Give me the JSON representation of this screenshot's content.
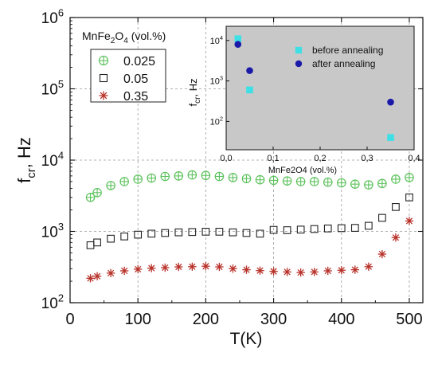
{
  "chart_data": [
    {
      "type": "scatter",
      "xlabel": "T(K)",
      "ylabel_base": "f",
      "ylabel_sub": "cr",
      "ylabel_rest": ", Hz",
      "xlim": [
        0,
        520
      ],
      "ylim_log": [
        2,
        6
      ],
      "x_ticks": [
        "0",
        "100",
        "200",
        "300",
        "400",
        "500"
      ],
      "x_tick_values": [
        0,
        100,
        200,
        300,
        400,
        500
      ],
      "y_tick_values": [
        2,
        3,
        4,
        5,
        6
      ],
      "y_tick_mantissa": "10",
      "y_tick_exponents": [
        "2",
        "3",
        "4",
        "5",
        "6"
      ],
      "grid": true,
      "legend_title_pre": "MnFe",
      "legend_title_sub1": "2",
      "legend_title_mid": "O",
      "legend_title_sub2": "4",
      "legend_title_post": " (vol.%)",
      "legend_position": "top-left",
      "series": [
        {
          "name": "0.025",
          "marker": "circle-plus",
          "color": "#5cc25c",
          "x": [
            30,
            40,
            60,
            80,
            100,
            120,
            140,
            160,
            180,
            200,
            220,
            240,
            260,
            280,
            300,
            320,
            340,
            360,
            380,
            400,
            420,
            440,
            460,
            480,
            500
          ],
          "y": [
            3000,
            3500,
            4400,
            5000,
            5400,
            5600,
            5900,
            6000,
            6200,
            6100,
            5900,
            5700,
            5500,
            5300,
            5200,
            5100,
            5000,
            5000,
            4900,
            4800,
            4600,
            4500,
            4700,
            5400,
            5700
          ]
        },
        {
          "name": "0.05",
          "marker": "square",
          "color": "#222222",
          "x": [
            30,
            40,
            60,
            80,
            100,
            120,
            140,
            160,
            180,
            200,
            220,
            240,
            260,
            280,
            300,
            320,
            340,
            360,
            380,
            400,
            420,
            440,
            460,
            480,
            500
          ],
          "y": [
            640,
            700,
            790,
            850,
            900,
            930,
            950,
            970,
            980,
            990,
            990,
            970,
            950,
            930,
            1050,
            1040,
            1060,
            1080,
            1100,
            1110,
            1120,
            1200,
            1550,
            2200,
            3000
          ]
        },
        {
          "name": "0.35",
          "marker": "asterisk",
          "color": "#b8322a",
          "x": [
            30,
            40,
            60,
            80,
            100,
            120,
            140,
            160,
            180,
            200,
            220,
            240,
            260,
            280,
            300,
            320,
            340,
            360,
            380,
            400,
            420,
            440,
            460,
            480,
            500
          ],
          "y": [
            220,
            235,
            260,
            280,
            295,
            305,
            310,
            318,
            320,
            325,
            318,
            300,
            290,
            282,
            275,
            270,
            265,
            270,
            280,
            285,
            290,
            320,
            480,
            820,
            1400
          ]
        }
      ]
    },
    {
      "type": "scatter",
      "xlabel": "MnFe2O4 (vol.%)",
      "ylabel_base": "f",
      "ylabel_sub": "cr",
      "ylabel_rest": ", Hz",
      "xlim": [
        0,
        0.4
      ],
      "ylim_log": [
        1.3,
        4.35
      ],
      "x_ticks": [
        "0,0",
        "0,1",
        "0,2",
        "0,3",
        "0,4"
      ],
      "x_tick_values": [
        0,
        0.1,
        0.2,
        0.3,
        0.4
      ],
      "y_tick_values": [
        2,
        3,
        4
      ],
      "y_tick_mantissa": "10",
      "y_tick_exponents": [
        "2",
        "3",
        "4"
      ],
      "background": "#c8c8c8",
      "legend_position": "top-right",
      "series": [
        {
          "name": "before annealing",
          "marker": "square",
          "color": "#3ee0e6",
          "x": [
            0.025,
            0.05,
            0.35
          ],
          "y": [
            11000,
            600,
            40
          ]
        },
        {
          "name": "after annealing",
          "marker": "circle",
          "color": "#1a1aa8",
          "x": [
            0.025,
            0.05,
            0.35
          ],
          "y": [
            8000,
            1800,
            300
          ]
        }
      ]
    }
  ]
}
